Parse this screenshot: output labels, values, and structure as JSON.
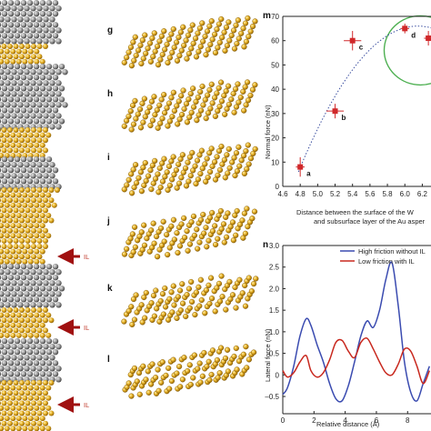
{
  "panels": {
    "left_structure": {
      "il_labels": [
        "IL",
        "IL",
        "IL"
      ],
      "arrow_color": "#a01010"
    },
    "snapshots": [
      {
        "label": "g",
        "rows": 8,
        "cols": 14,
        "amp": 0.0
      },
      {
        "label": "h",
        "rows": 8,
        "cols": 14,
        "amp": 0.4
      },
      {
        "label": "i",
        "rows": 8,
        "cols": 14,
        "amp": 0.5
      },
      {
        "label": "j",
        "rows": 8,
        "cols": 14,
        "amp": 1.2
      },
      {
        "label": "k",
        "rows": 8,
        "cols": 14,
        "amp": 1.6
      },
      {
        "label": "l",
        "rows": 8,
        "cols": 14,
        "amp": 2.2
      }
    ],
    "atom_colors": {
      "gold": "#e0a820",
      "gold_edge": "#8a5c00",
      "grey": "#9a9a9a",
      "grey_dark": "#505050"
    }
  },
  "chart_data": [
    {
      "panel": "m",
      "type": "scatter",
      "xlabel": "Distance between the surface of the W",
      "xlabel2": "and subsurface layer of the Au asper",
      "ylabel": "Normal force (nN)",
      "xlim": [
        4.6,
        6.3
      ],
      "ylim": [
        0,
        70
      ],
      "xticks": [
        "4.6",
        "4.8",
        "5.0",
        "5.2",
        "5.4",
        "5.6",
        "5.8",
        "6.0",
        "6.2"
      ],
      "yticks": [
        "0",
        "10",
        "20",
        "30",
        "40",
        "50",
        "60",
        "70"
      ],
      "points": [
        {
          "label": "a",
          "x": 4.8,
          "y": 8,
          "xerr": 0.05,
          "yerr": 4
        },
        {
          "label": "b",
          "x": 5.2,
          "y": 31,
          "xerr": 0.1,
          "yerr": 3
        },
        {
          "label": "c",
          "x": 5.4,
          "y": 60,
          "xerr": 0.1,
          "yerr": 4
        },
        {
          "label": "d",
          "x": 6.0,
          "y": 65,
          "xerr": 0.05,
          "yerr": 2
        },
        {
          "label": "",
          "x": 6.27,
          "y": 61,
          "xerr": 0.05,
          "yerr": 3
        }
      ],
      "fit_curve": {
        "style": "dotted",
        "color": "#3b4fa0"
      },
      "highlight": {
        "shape": "ellipse",
        "color": "#4caf50"
      },
      "marker_color": "#d0282a"
    },
    {
      "panel": "n",
      "type": "line",
      "xlabel": "Relative distance (Å)",
      "ylabel": "Lateral force (nN)",
      "xlim": [
        0,
        9.5
      ],
      "ylim": [
        -0.9,
        3.0
      ],
      "xticks": [
        "0",
        "2",
        "4",
        "6",
        "8"
      ],
      "yticks": [
        "–0.5",
        "0",
        "0.5",
        "1.0",
        "1.5",
        "2.0",
        "2.5",
        "3.0"
      ],
      "series": [
        {
          "name": "High friction without IL",
          "color": "#3a4bb0",
          "x": [
            0,
            0.3,
            0.7,
            1.1,
            1.5,
            1.8,
            2.2,
            2.6,
            3.0,
            3.4,
            3.8,
            4.2,
            4.6,
            5.0,
            5.4,
            5.8,
            6.2,
            6.6,
            7.0,
            7.4,
            7.8,
            8.2,
            8.6,
            9.0,
            9.4
          ],
          "values": [
            -0.45,
            -0.3,
            0.2,
            0.9,
            1.3,
            1.15,
            0.7,
            0.3,
            -0.2,
            -0.55,
            -0.6,
            -0.25,
            0.3,
            0.9,
            1.25,
            1.1,
            1.5,
            2.2,
            2.6,
            1.6,
            0.3,
            -0.4,
            -0.6,
            -0.2,
            0.2
          ]
        },
        {
          "name": "Low friction with IL",
          "color": "#c8281e",
          "x": [
            0,
            0.3,
            0.7,
            1.1,
            1.5,
            1.8,
            2.2,
            2.6,
            3.0,
            3.4,
            3.8,
            4.2,
            4.6,
            5.0,
            5.4,
            5.8,
            6.2,
            6.6,
            7.0,
            7.4,
            7.8,
            8.2,
            8.6,
            9.0,
            9.4
          ],
          "values": [
            0.1,
            -0.05,
            0.05,
            0.3,
            0.45,
            0.1,
            -0.05,
            0.05,
            0.35,
            0.75,
            0.8,
            0.55,
            0.4,
            0.75,
            0.85,
            0.6,
            0.3,
            0.05,
            0.0,
            0.25,
            0.6,
            0.55,
            0.2,
            -0.2,
            0.1
          ]
        }
      ]
    }
  ]
}
